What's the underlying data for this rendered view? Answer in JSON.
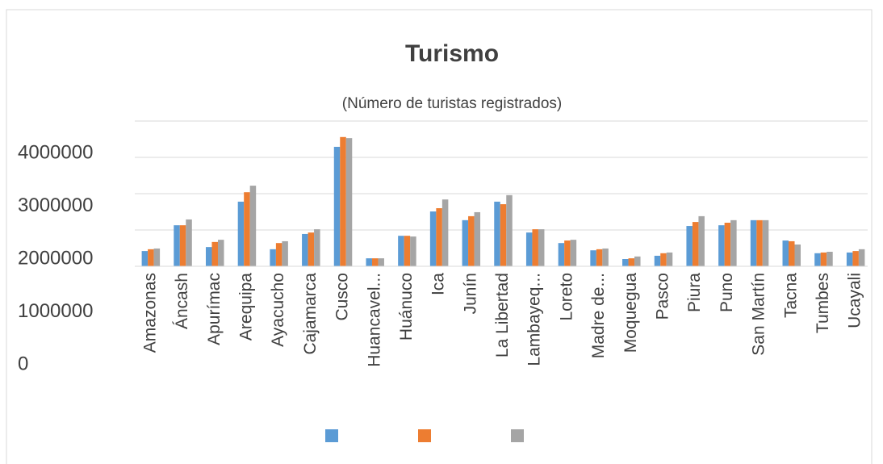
{
  "chart_data": {
    "type": "bar",
    "title": "Turismo",
    "subtitle": "(Número de turistas registrados)",
    "categories": [
      "Amazonas",
      "Áncash",
      "Apurímac",
      "Arequipa",
      "Ayacucho",
      "Cajamarca",
      "Cusco",
      "Huancavel...",
      "Huánuco",
      "Ica",
      "Junín",
      "La Libertad",
      "Lambayeq...",
      "Loreto",
      "Madre de...",
      "Moquegua",
      "Pasco",
      "Piura",
      "Puno",
      "San Martín",
      "Tacna",
      "Tumbes",
      "Ucayali"
    ],
    "series": [
      {
        "color": "#5b9bd5",
        "values": [
          420000,
          1130000,
          530000,
          1780000,
          470000,
          890000,
          3290000,
          220000,
          840000,
          1510000,
          1270000,
          1780000,
          930000,
          640000,
          440000,
          200000,
          290000,
          1110000,
          1130000,
          1270000,
          710000,
          360000,
          380000
        ]
      },
      {
        "color": "#ed7d31",
        "values": [
          470000,
          1130000,
          670000,
          2040000,
          640000,
          930000,
          3560000,
          220000,
          840000,
          1600000,
          1380000,
          1710000,
          1020000,
          710000,
          470000,
          220000,
          360000,
          1220000,
          1200000,
          1270000,
          690000,
          380000,
          420000
        ]
      },
      {
        "color": "#a5a5a5",
        "values": [
          490000,
          1290000,
          730000,
          2220000,
          690000,
          1020000,
          3530000,
          220000,
          820000,
          1840000,
          1490000,
          1960000,
          1020000,
          730000,
          490000,
          270000,
          380000,
          1380000,
          1270000,
          1270000,
          600000,
          400000,
          470000
        ]
      }
    ],
    "ylim": [
      0,
      4000000
    ],
    "yticks": [
      0,
      1000000,
      2000000,
      3000000,
      4000000
    ],
    "grid": true
  }
}
